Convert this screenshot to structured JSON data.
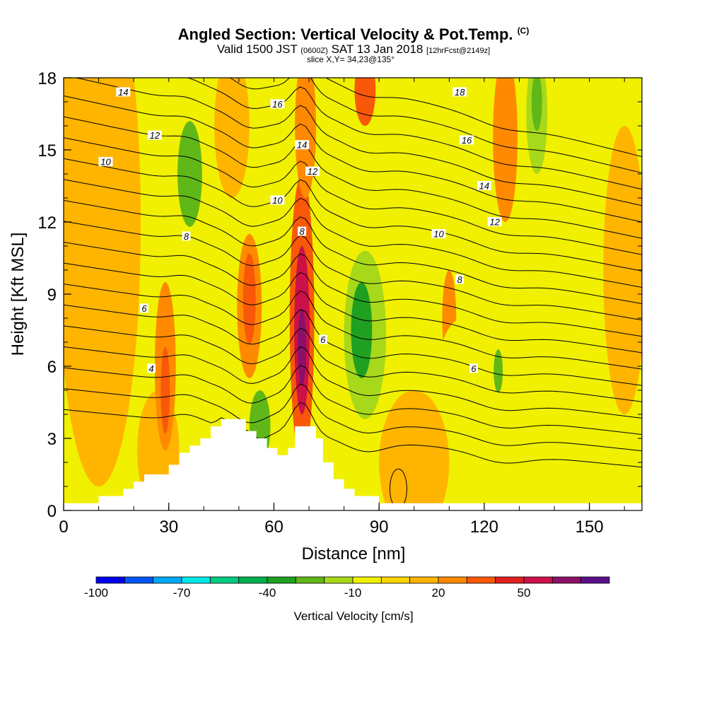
{
  "title": {
    "main": "Angled Section: Vertical Velocity & Pot.Temp.",
    "main_unit": "(C)",
    "valid_prefix": "Valid 1500 JST",
    "valid_z": "(0600Z)",
    "valid_date": "SAT 13 Jan 2018",
    "forecast": "[12hrFcst@2149z]",
    "slice": "slice X,Y= 34,23@135°"
  },
  "chart_data": {
    "type": "heatmap",
    "xlabel": "Distance [nm]",
    "ylabel": "Height [Kft MSL]",
    "xlim": [
      0,
      165
    ],
    "ylim": [
      0,
      18
    ],
    "x_ticks": [
      0,
      30,
      60,
      90,
      120,
      150
    ],
    "y_ticks": [
      0,
      3,
      6,
      9,
      12,
      15,
      18
    ],
    "background_level": -10,
    "velocity_features": [
      {
        "x": 10,
        "y": 12,
        "rx": 12,
        "ry": 11,
        "value": 10,
        "kind": "broad"
      },
      {
        "x": 27,
        "y": 2.5,
        "rx": 6,
        "ry": 2.5,
        "value": 10,
        "kind": "broad"
      },
      {
        "x": 29,
        "y": 6,
        "rx": 3,
        "ry": 3.5,
        "value": 20,
        "kind": "updraft"
      },
      {
        "x": 29,
        "y": 5,
        "rx": 1.3,
        "ry": 1.8,
        "value": 30,
        "kind": "updraft"
      },
      {
        "x": 36,
        "y": 14,
        "rx": 3.5,
        "ry": 2.2,
        "value": -30,
        "kind": "downdraft"
      },
      {
        "x": 48,
        "y": 16,
        "rx": 5,
        "ry": 3,
        "value": 10,
        "kind": "broad"
      },
      {
        "x": 53,
        "y": 8.5,
        "rx": 3.5,
        "ry": 3,
        "value": 20,
        "kind": "updraft"
      },
      {
        "x": 53,
        "y": 8.8,
        "rx": 1.8,
        "ry": 1.9,
        "value": 30,
        "kind": "updraft"
      },
      {
        "x": 56,
        "y": 3.5,
        "rx": 3,
        "ry": 1.5,
        "value": -30,
        "kind": "downdraft"
      },
      {
        "x": 68,
        "y": 8,
        "rx": 3.5,
        "ry": 6,
        "value": 30,
        "kind": "updraft"
      },
      {
        "x": 68,
        "y": 7.5,
        "rx": 2.2,
        "ry": 3.5,
        "value": 50,
        "kind": "updraft"
      },
      {
        "x": 68,
        "y": 6.8,
        "rx": 1.2,
        "ry": 1.6,
        "value": 60,
        "kind": "updraft"
      },
      {
        "x": 69,
        "y": 16,
        "rx": 3,
        "ry": 3,
        "value": 20,
        "kind": "updraft"
      },
      {
        "x": 86,
        "y": 7.3,
        "rx": 6,
        "ry": 3.5,
        "value": -20,
        "kind": "downdraft"
      },
      {
        "x": 85,
        "y": 7.5,
        "rx": 3,
        "ry": 2,
        "value": -40,
        "kind": "downdraft"
      },
      {
        "x": 86,
        "y": 17.5,
        "rx": 3,
        "ry": 1.5,
        "value": 30,
        "kind": "updraft"
      },
      {
        "x": 110,
        "y": 8,
        "rx": 2,
        "ry": 2,
        "value": 20,
        "kind": "updraft"
      },
      {
        "x": 114,
        "y": 5,
        "rx": 8,
        "ry": 3,
        "value": -10,
        "kind": "downdraft"
      },
      {
        "x": 126,
        "y": 15.5,
        "rx": 3.5,
        "ry": 3.5,
        "value": 20,
        "kind": "updraft"
      },
      {
        "x": 125,
        "y": 6,
        "rx": 3,
        "ry": 1.5,
        "value": -10,
        "kind": "downdraft"
      },
      {
        "x": 124,
        "y": 5.8,
        "rx": 1.3,
        "ry": 0.9,
        "value": -30,
        "kind": "downdraft"
      },
      {
        "x": 135,
        "y": 16.5,
        "rx": 3,
        "ry": 2.5,
        "value": -20,
        "kind": "downdraft"
      },
      {
        "x": 135,
        "y": 17,
        "rx": 1.5,
        "ry": 1.2,
        "value": -30,
        "kind": "downdraft"
      },
      {
        "x": 160,
        "y": 10,
        "rx": 6,
        "ry": 6,
        "value": 10,
        "kind": "broad"
      },
      {
        "x": 100,
        "y": 2,
        "rx": 10,
        "ry": 3,
        "value": 10,
        "kind": "broad"
      }
    ],
    "terrain": [
      {
        "x": 0,
        "h": 0.3
      },
      {
        "x": 10,
        "h": 0.6
      },
      {
        "x": 17,
        "h": 0.9
      },
      {
        "x": 20,
        "h": 1.2
      },
      {
        "x": 23,
        "h": 1.5
      },
      {
        "x": 30,
        "h": 1.9
      },
      {
        "x": 33,
        "h": 2.4
      },
      {
        "x": 36,
        "h": 2.7
      },
      {
        "x": 39,
        "h": 3.0
      },
      {
        "x": 42,
        "h": 3.5
      },
      {
        "x": 45,
        "h": 3.8
      },
      {
        "x": 52,
        "h": 3.3
      },
      {
        "x": 55,
        "h": 3.0
      },
      {
        "x": 58,
        "h": 2.6
      },
      {
        "x": 61,
        "h": 2.3
      },
      {
        "x": 64,
        "h": 2.6
      },
      {
        "x": 66,
        "h": 3.5
      },
      {
        "x": 72,
        "h": 3.0
      },
      {
        "x": 74,
        "h": 2.0
      },
      {
        "x": 77,
        "h": 1.3
      },
      {
        "x": 80,
        "h": 0.9
      },
      {
        "x": 83,
        "h": 0.6
      },
      {
        "x": 90,
        "h": 0.3
      },
      {
        "x": 165,
        "h": 0.3
      }
    ],
    "theta_levels": [
      0,
      1,
      2,
      3,
      4,
      5,
      6,
      7,
      8,
      9,
      10,
      11,
      12,
      13,
      14,
      15,
      16,
      17,
      18,
      19
    ],
    "theta_labels": [
      {
        "x": 25,
        "y": 5.9,
        "text": "4"
      },
      {
        "x": 23,
        "y": 8.4,
        "text": "6"
      },
      {
        "x": 74,
        "y": 7.1,
        "text": "6"
      },
      {
        "x": 117,
        "y": 5.9,
        "text": "6"
      },
      {
        "x": 35,
        "y": 11.4,
        "text": "8"
      },
      {
        "x": 68,
        "y": 11.6,
        "text": "8"
      },
      {
        "x": 113,
        "y": 9.6,
        "text": "8"
      },
      {
        "x": 12,
        "y": 14.5,
        "text": "10"
      },
      {
        "x": 61,
        "y": 12.9,
        "text": "10"
      },
      {
        "x": 107,
        "y": 11.5,
        "text": "10"
      },
      {
        "x": 26,
        "y": 15.6,
        "text": "12"
      },
      {
        "x": 71,
        "y": 14.1,
        "text": "12"
      },
      {
        "x": 123,
        "y": 12.0,
        "text": "12"
      },
      {
        "x": 17,
        "y": 17.4,
        "text": "14"
      },
      {
        "x": 68,
        "y": 15.2,
        "text": "14"
      },
      {
        "x": 120,
        "y": 13.5,
        "text": "14"
      },
      {
        "x": 61,
        "y": 16.9,
        "text": "16"
      },
      {
        "x": 115,
        "y": 15.4,
        "text": "16"
      },
      {
        "x": 113,
        "y": 17.4,
        "text": "18"
      }
    ],
    "colorbar": {
      "label": "Vertical Velocity [cm/s]",
      "min": -100,
      "step": 10,
      "colors": [
        "#0000ee",
        "#0055f5",
        "#00a8f5",
        "#00e8e8",
        "#00cc80",
        "#00b050",
        "#1fa020",
        "#60b818",
        "#a8d81a",
        "#f0f000",
        "#ffd400",
        "#ffb400",
        "#ff8a00",
        "#f85808",
        "#e02020",
        "#cc1048",
        "#8a1068",
        "#5a0e88"
      ],
      "tick_values": [
        -100,
        -70,
        -40,
        -10,
        20,
        50
      ],
      "tick_labels": [
        "-100",
        "-70",
        "-40",
        "-10",
        "20",
        "50"
      ]
    }
  }
}
